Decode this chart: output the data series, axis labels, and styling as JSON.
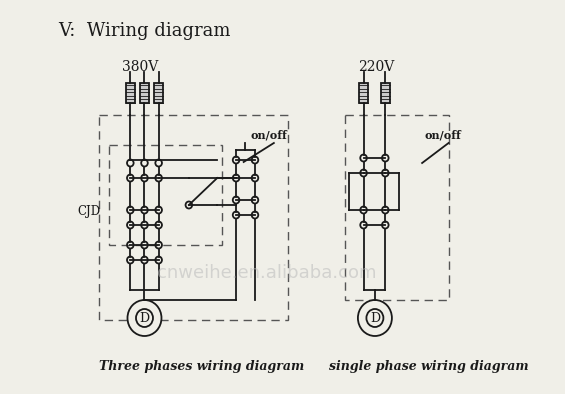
{
  "title": "V:  Wiring diagram",
  "label_380": "380V",
  "label_220": "220V",
  "label_onoff1": "on/off",
  "label_onoff2": "on/off",
  "label_cjd": "CJD",
  "label_three": "Three phases wiring diagram",
  "label_single": "single phase wiring diagram",
  "watermark": "cnweihe.en.alibaba.com",
  "bg_color": "#f0efe8",
  "line_color": "#1a1a1a",
  "dash_color": "#555555",
  "fig_w": 5.65,
  "fig_h": 3.94,
  "dpi": 100
}
